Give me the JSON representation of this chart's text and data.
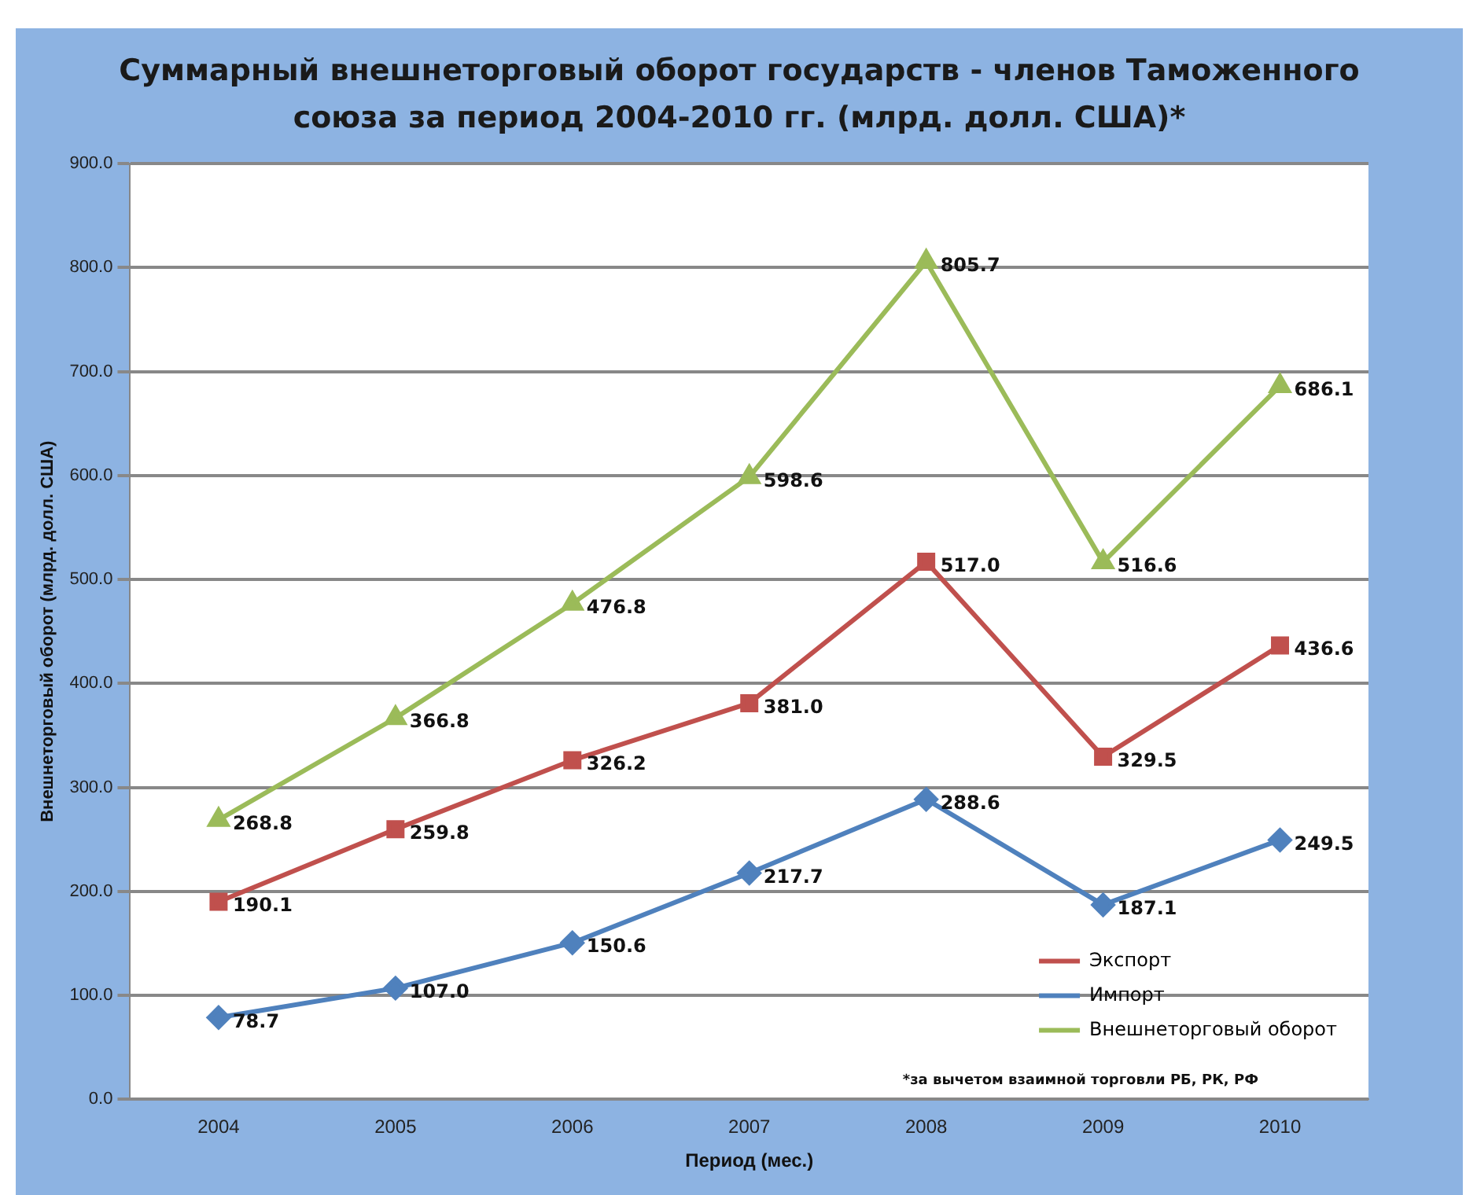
{
  "chart_data": {
    "type": "line",
    "title": "Суммарный внешнеторговый оборот государств - членов Таможенного союза за период 2004-2010 гг. (млрд. долл. США)*",
    "xlabel": "Период (мес.)",
    "ylabel": "Внешнеторговый оборот (млрд. долл. США)",
    "categories": [
      "2004",
      "2005",
      "2006",
      "2007",
      "2008",
      "2009",
      "2010"
    ],
    "series": [
      {
        "name": "Экспорт",
        "color": "#c0504d",
        "marker": "square",
        "values": [
          190.1,
          259.8,
          326.2,
          381.0,
          517.0,
          329.5,
          436.6
        ],
        "value_labels": [
          "190.1",
          "259.8",
          "326.2",
          "381.0",
          "517.0",
          "329.5",
          "436.6"
        ]
      },
      {
        "name": "Импорт",
        "color": "#4f81bd",
        "marker": "diamond",
        "values": [
          78.7,
          107.0,
          150.6,
          217.7,
          288.6,
          187.1,
          249.5
        ],
        "value_labels": [
          "78.7",
          "107.0",
          "150.6",
          "217.7",
          "288.6",
          "187.1",
          "249.5"
        ]
      },
      {
        "name": "Внешнеторговый оборот",
        "color": "#9bbb59",
        "marker": "triangle",
        "values": [
          268.8,
          366.8,
          476.8,
          598.6,
          805.7,
          516.6,
          686.1
        ],
        "value_labels": [
          "268.8",
          "366.8",
          "476.8",
          "598.6",
          "805.7",
          "516.6",
          "686.1"
        ]
      }
    ],
    "ylim": [
      0,
      900
    ],
    "yticks": [
      {
        "value": 0,
        "label": "0.0"
      },
      {
        "value": 100,
        "label": "100.0"
      },
      {
        "value": 200,
        "label": "200.0"
      },
      {
        "value": 300,
        "label": "300.0"
      },
      {
        "value": 400,
        "label": "400.0"
      },
      {
        "value": 500,
        "label": "500.0"
      },
      {
        "value": 600,
        "label": "600.0"
      },
      {
        "value": 700,
        "label": "700.0"
      },
      {
        "value": 800,
        "label": "800.0"
      },
      {
        "value": 900,
        "label": "900.0"
      }
    ],
    "grid": "y",
    "legend": "bottom right",
    "line_style": "solid",
    "annotations": [
      "*за вычетом взаимной торговли РБ, РК, РФ"
    ]
  }
}
